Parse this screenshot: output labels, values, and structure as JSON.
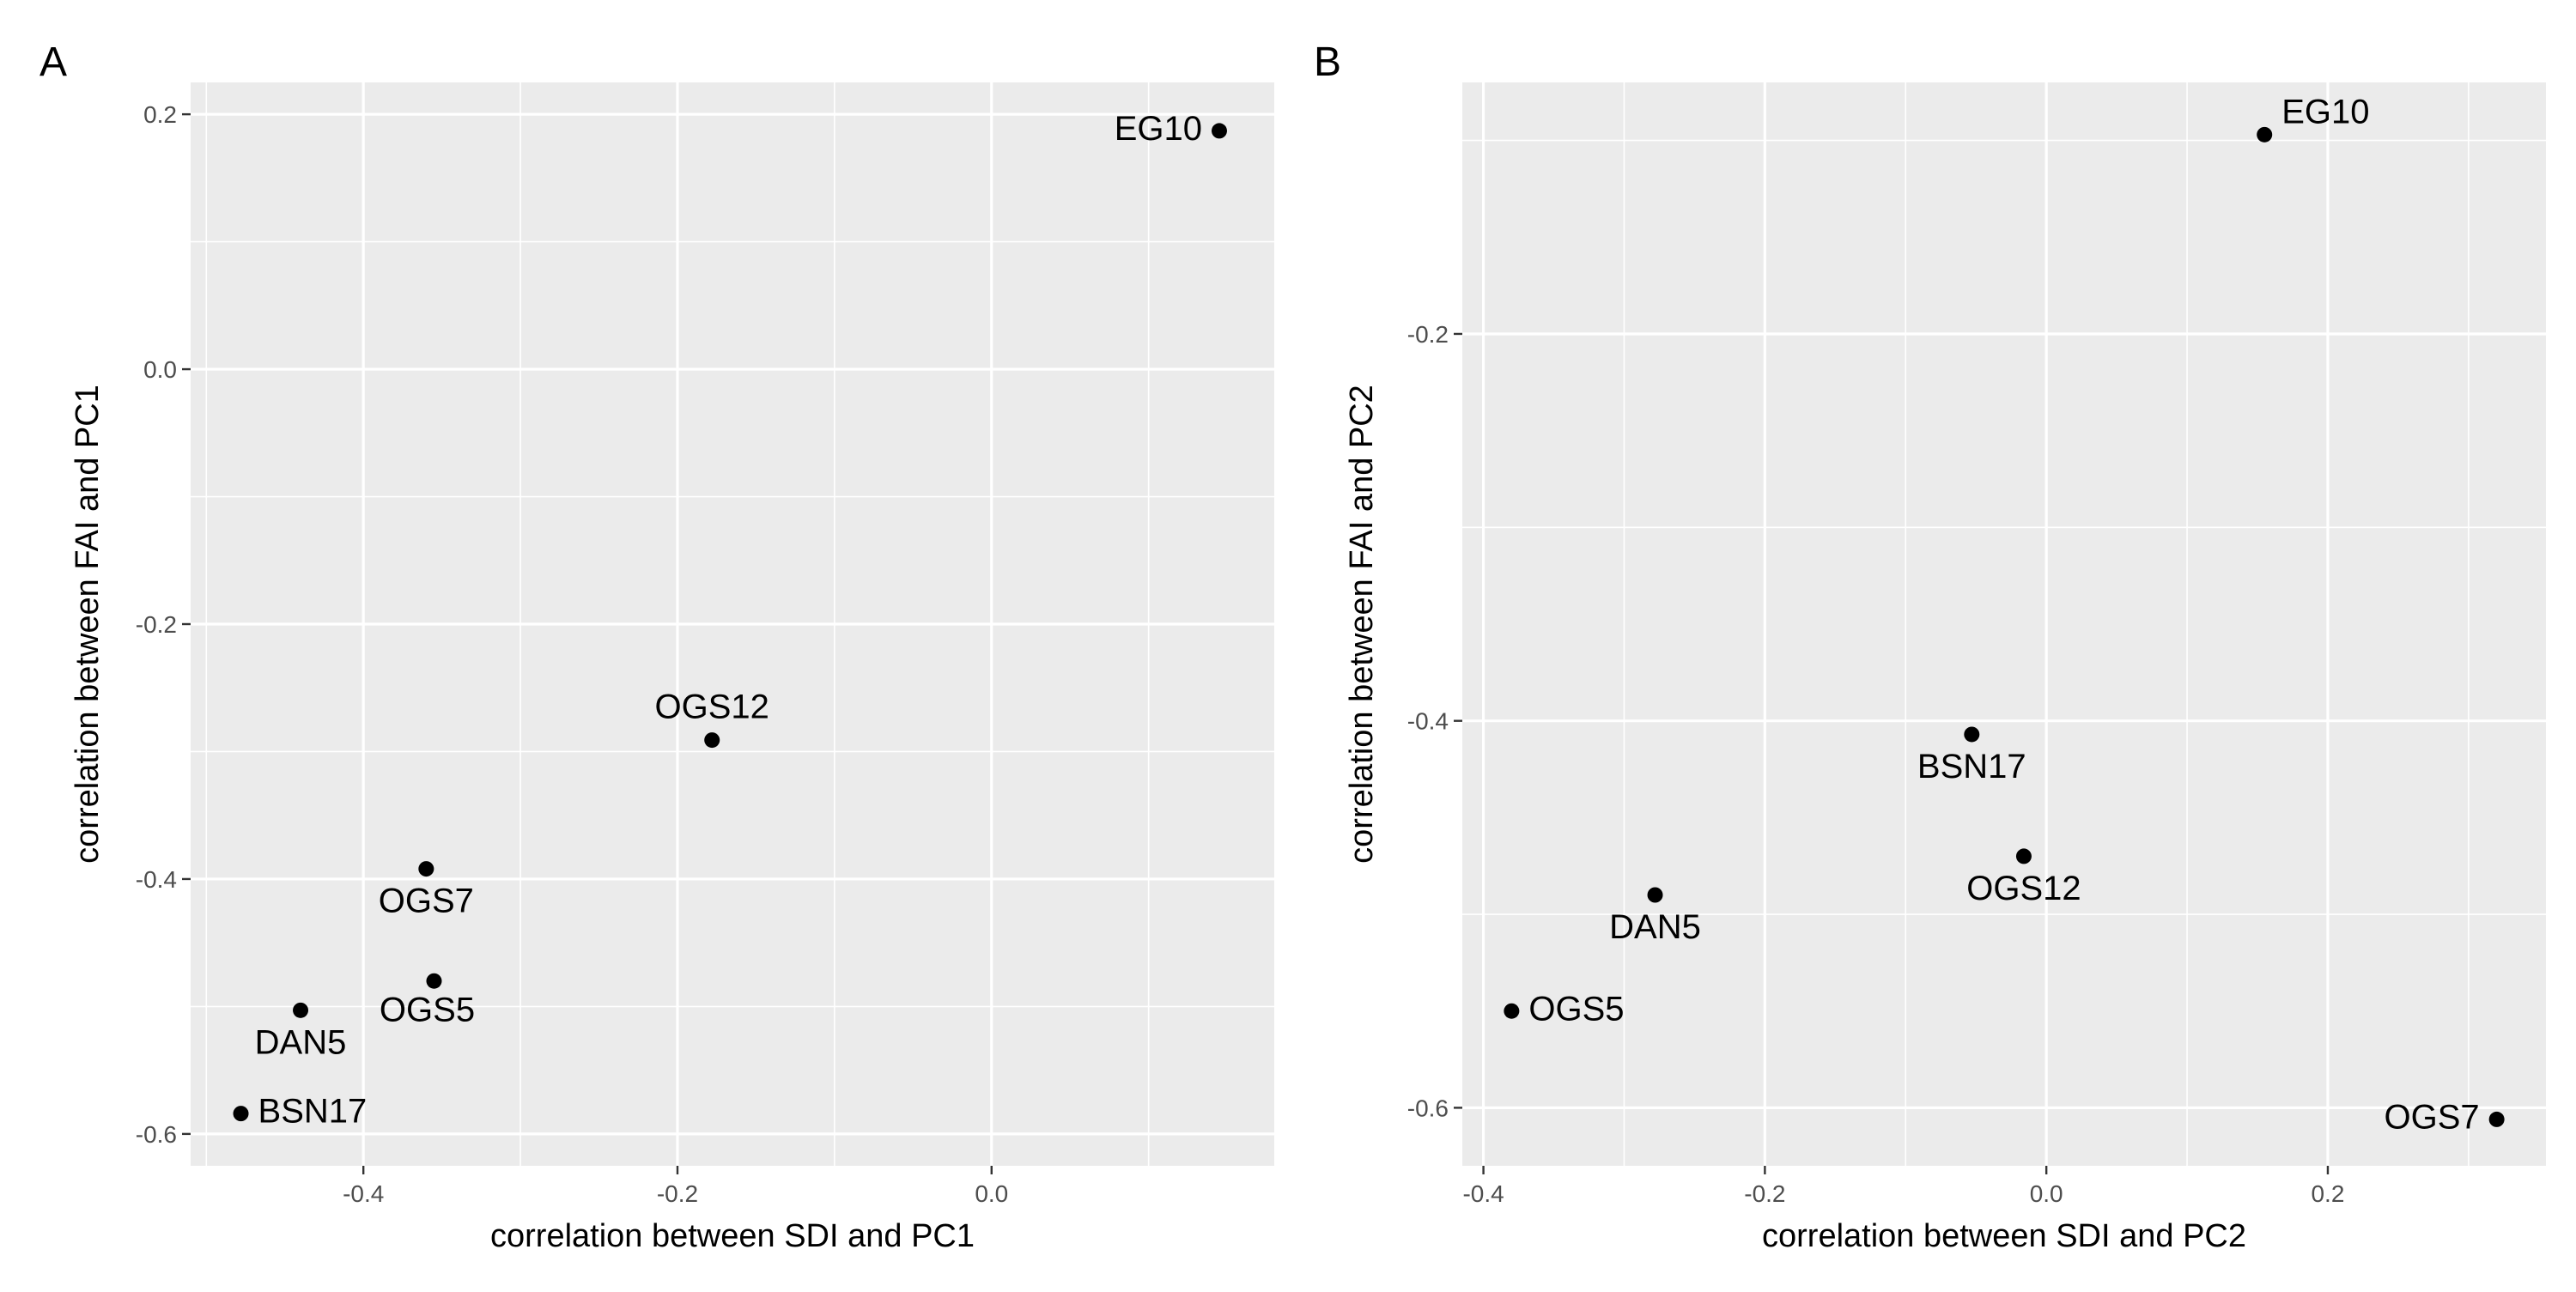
{
  "chart_data": [
    {
      "type": "scatter",
      "panel_label": "A",
      "xlabel": "correlation between SDI and PC1",
      "ylabel": "correlation between FAI and PC1",
      "xlim": [
        -0.51,
        0.18
      ],
      "ylim": [
        -0.625,
        0.225
      ],
      "xticks": [
        -0.4,
        -0.2,
        0.0
      ],
      "xtick_labels": [
        "-0.4",
        "-0.2",
        "0.0"
      ],
      "yticks": [
        -0.6,
        -0.4,
        -0.2,
        0.0,
        0.2
      ],
      "ytick_labels": [
        "-0.6",
        "-0.4",
        "-0.2",
        "0.0",
        "0.2"
      ],
      "grid": true,
      "points": [
        {
          "label": "EG10",
          "x": 0.145,
          "y": 0.187,
          "label_pos": "left"
        },
        {
          "label": "OGS12",
          "x": -0.178,
          "y": -0.291,
          "label_pos": "above"
        },
        {
          "label": "OGS7",
          "x": -0.36,
          "y": -0.392,
          "label_pos": "below"
        },
        {
          "label": "OGS5",
          "x": -0.355,
          "y": -0.48,
          "label_pos": "below-right"
        },
        {
          "label": "DAN5",
          "x": -0.44,
          "y": -0.503,
          "label_pos": "below"
        },
        {
          "label": "BSN17",
          "x": -0.478,
          "y": -0.584,
          "label_pos": "right"
        }
      ]
    },
    {
      "type": "scatter",
      "panel_label": "B",
      "xlabel": "correlation between SDI and PC2",
      "ylabel": "correlation between FAI and PC2",
      "xlim": [
        -0.415,
        0.355
      ],
      "ylim": [
        -0.63,
        -0.07
      ],
      "xticks": [
        -0.4,
        -0.2,
        0.0,
        0.2
      ],
      "xtick_labels": [
        "-0.4",
        "-0.2",
        "0.0",
        "0.2"
      ],
      "yticks": [
        -0.6,
        -0.4,
        -0.2
      ],
      "ytick_labels": [
        "-0.6",
        "-0.4",
        "-0.2"
      ],
      "grid": true,
      "points": [
        {
          "label": "EG10",
          "x": 0.155,
          "y": -0.097,
          "label_pos": "right-up"
        },
        {
          "label": "BSN17",
          "x": -0.053,
          "y": -0.407,
          "label_pos": "below"
        },
        {
          "label": "OGS12",
          "x": -0.016,
          "y": -0.47,
          "label_pos": "below"
        },
        {
          "label": "DAN5",
          "x": -0.278,
          "y": -0.49,
          "label_pos": "below"
        },
        {
          "label": "OGS5",
          "x": -0.38,
          "y": -0.55,
          "label_pos": "right"
        },
        {
          "label": "OGS7",
          "x": 0.32,
          "y": -0.606,
          "label_pos": "left"
        }
      ]
    }
  ]
}
